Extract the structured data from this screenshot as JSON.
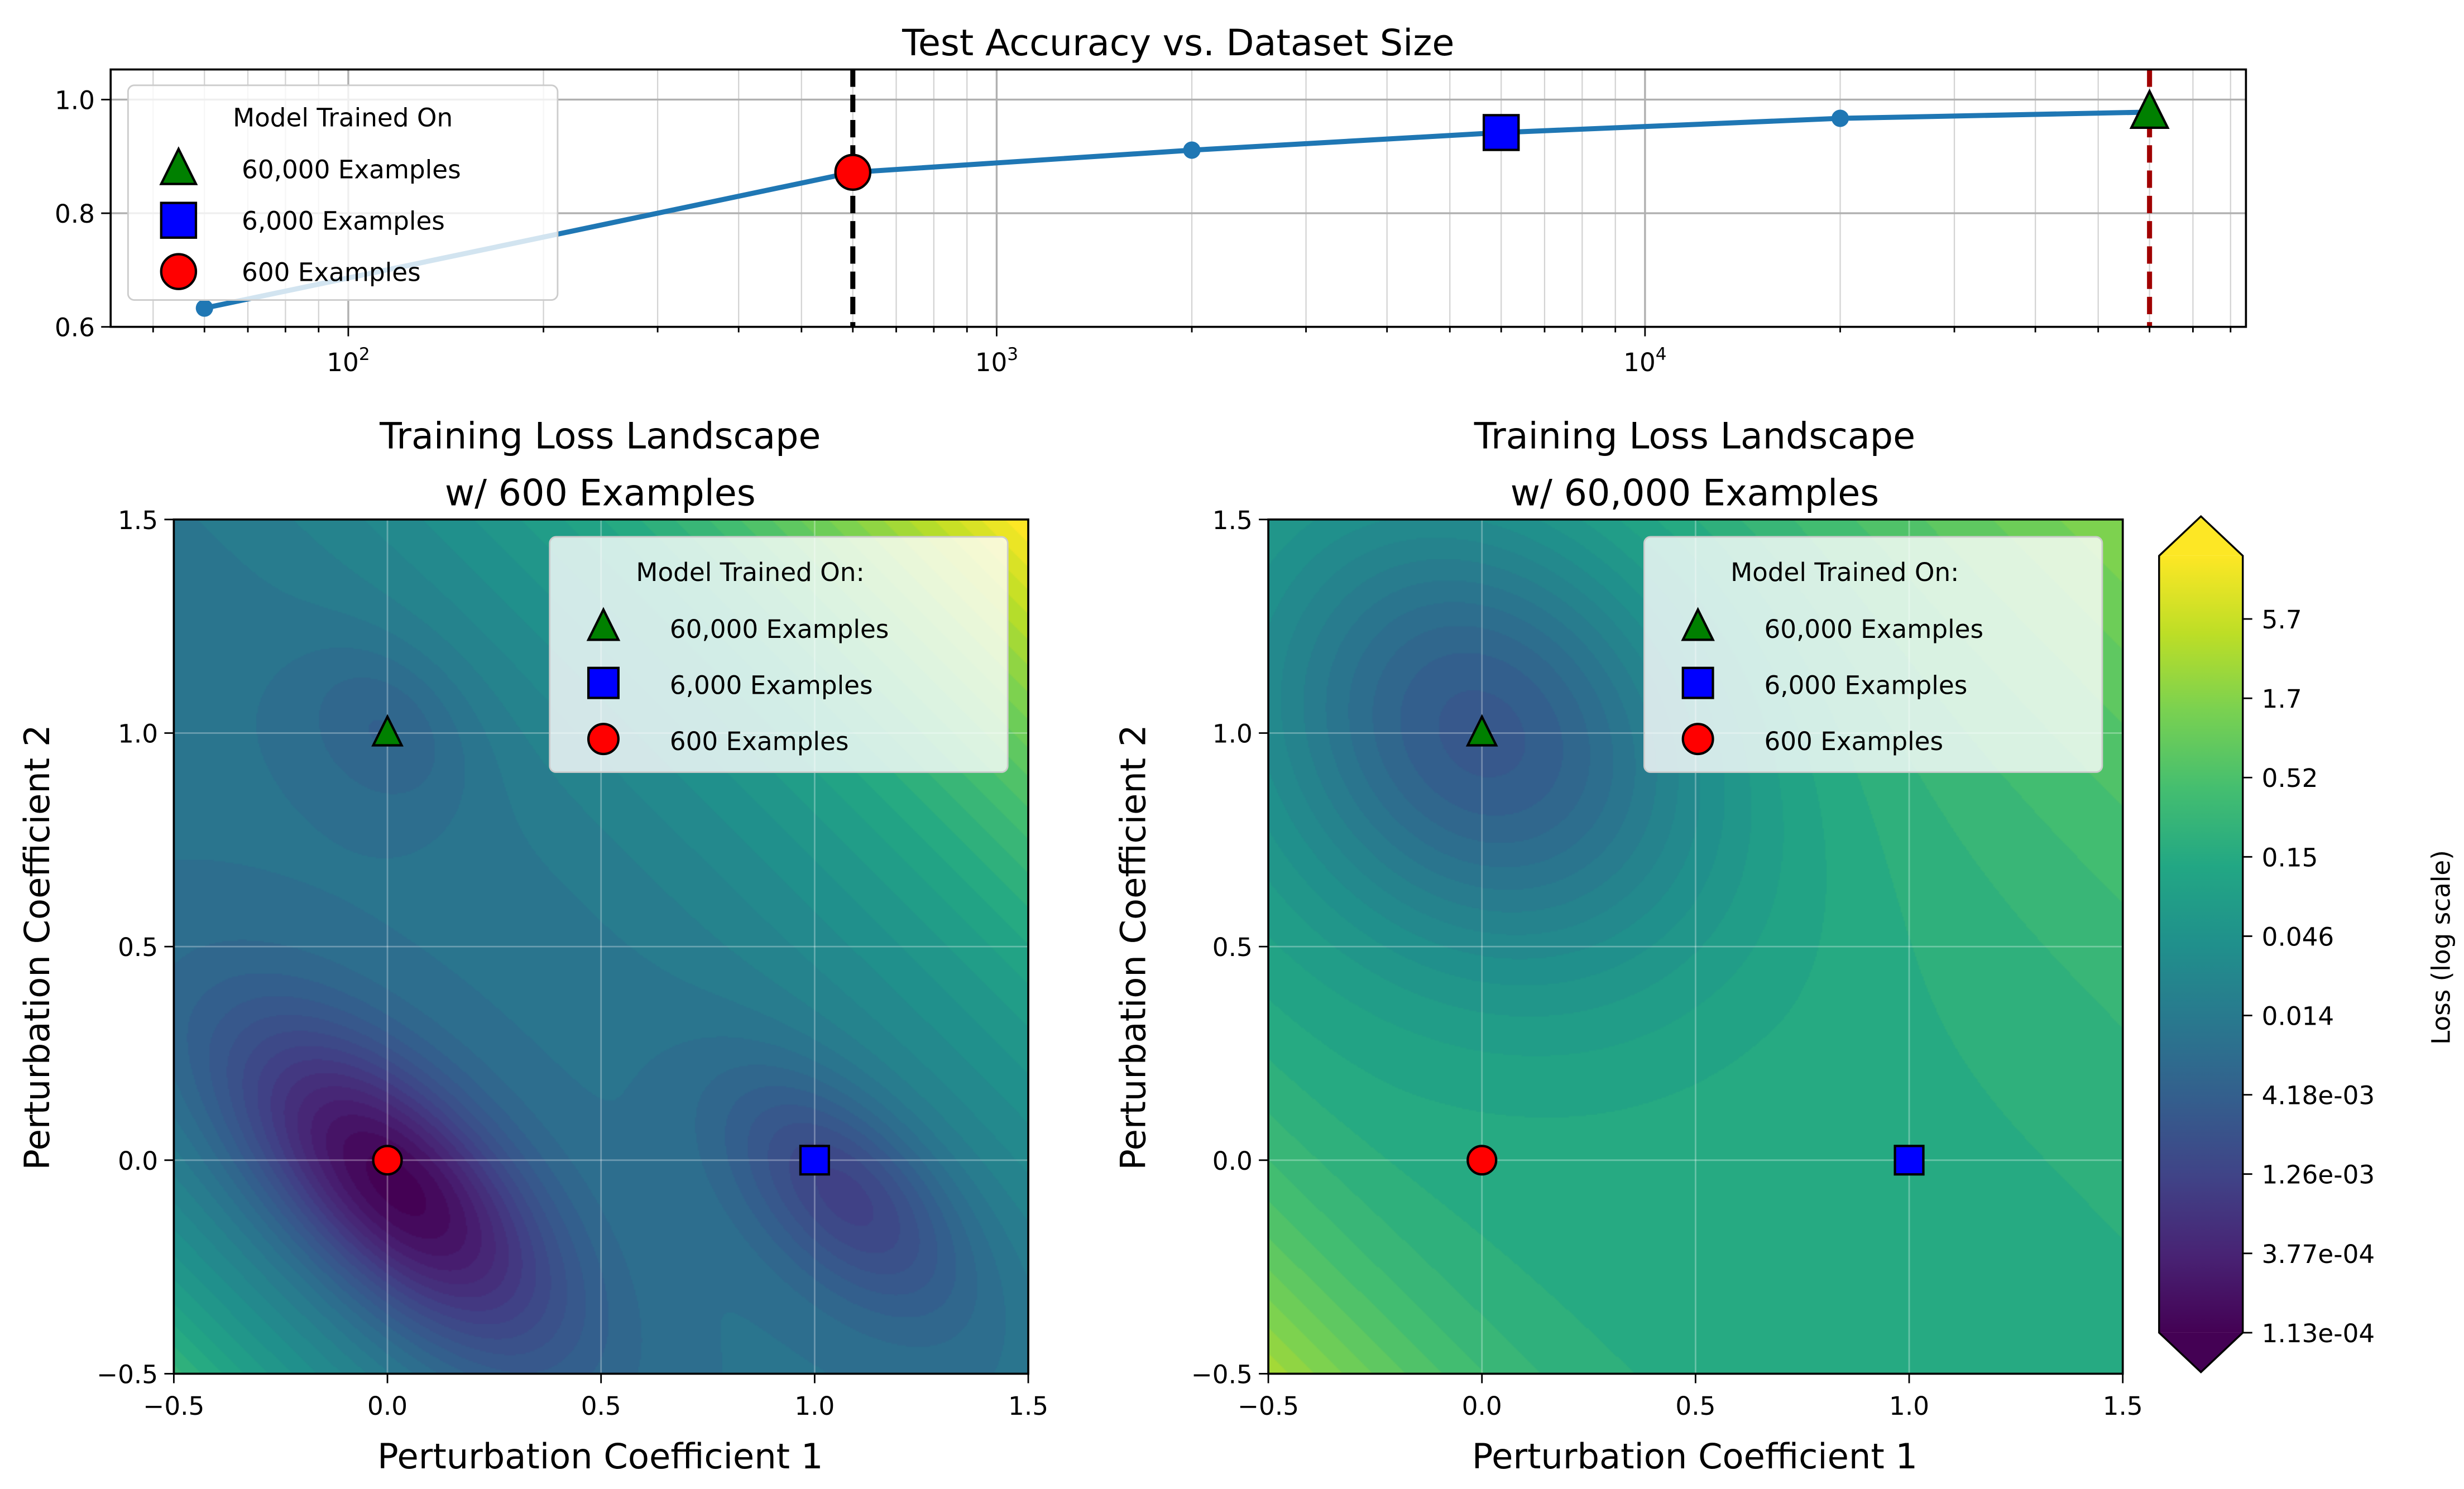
{
  "chart_data": [
    {
      "type": "line",
      "title": "Test Accuracy vs. Dataset Size",
      "xlabel": "",
      "ylabel": "",
      "xscale": "log",
      "xlim": [
        43,
        84500
      ],
      "ylim": [
        0.6,
        1.053
      ],
      "x_ticks": [
        {
          "value": 100,
          "label": "10^2"
        },
        {
          "value": 1000,
          "label": "10^3"
        },
        {
          "value": 10000,
          "label": "10^4"
        }
      ],
      "y_ticks": [
        "0.6",
        "0.8",
        "1.0"
      ],
      "grid": true,
      "series": [
        {
          "x": [
            60,
            600,
            2000,
            6000,
            20000,
            60000
          ],
          "y": [
            0.633,
            0.872,
            0.911,
            0.942,
            0.967,
            0.978
          ],
          "color": "#1f77b4"
        }
      ],
      "vlines": [
        {
          "x": 600,
          "color": "#000000",
          "style": "dashed"
        },
        {
          "x": 60000,
          "color": "#a00000",
          "style": "dashed"
        }
      ],
      "legend": {
        "title": "Model Trained On",
        "placement": "upper-left",
        "entries": [
          {
            "label": "60,000 Examples",
            "marker": "triangle",
            "color": "#008000",
            "x": 60000,
            "y": 0.978
          },
          {
            "label": "6,000 Examples",
            "marker": "square",
            "color": "#0000ff",
            "x": 6000,
            "y": 0.942
          },
          {
            "label": "600 Examples",
            "marker": "circle",
            "color": "#ff0000",
            "x": 600,
            "y": 0.872
          }
        ]
      }
    },
    {
      "type": "heatmap",
      "title_line1": "Training Loss Landscape",
      "title_line2": "w/ 600 Examples",
      "xlabel": "Perturbation Coefficient 1",
      "ylabel": "Perturbation Coefficient 2",
      "xlim": [
        -0.5,
        1.5
      ],
      "ylim": [
        -0.5,
        1.5
      ],
      "x_ticks": [
        "−0.5",
        "0.0",
        "0.5",
        "1.0",
        "1.5"
      ],
      "y_ticks": [
        "−0.5",
        "0.0",
        "0.5",
        "1.0",
        "1.5"
      ],
      "colormap": "viridis",
      "description_minima": "global minimum at (0,0); local minima at (1,0) and (0,1)",
      "legend": {
        "title": "Model Trained On:",
        "placement": "upper-right",
        "entries": [
          {
            "label": "60,000 Examples",
            "marker": "triangle",
            "color": "#008000",
            "x": 0,
            "y": 1
          },
          {
            "label": "6,000 Examples",
            "marker": "square",
            "color": "#0000ff",
            "x": 1,
            "y": 0
          },
          {
            "label": "600 Examples",
            "marker": "circle",
            "color": "#ff0000",
            "x": 0,
            "y": 0
          }
        ]
      }
    },
    {
      "type": "heatmap",
      "title_line1": "Training Loss Landscape",
      "title_line2": "w/ 60,000 Examples",
      "xlabel": "Perturbation Coefficient 1",
      "ylabel": "Perturbation Coefficient 2",
      "xlim": [
        -0.5,
        1.5
      ],
      "ylim": [
        -0.5,
        1.5
      ],
      "x_ticks": [
        "−0.5",
        "0.0",
        "0.5",
        "1.0",
        "1.5"
      ],
      "y_ticks": [
        "−0.5",
        "0.0",
        "0.5",
        "1.0",
        "1.5"
      ],
      "colormap": "viridis",
      "legend": {
        "title": "Model Trained On:",
        "placement": "upper-right",
        "entries": [
          {
            "label": "60,000 Examples",
            "marker": "triangle",
            "color": "#008000",
            "x": 0,
            "y": 1
          },
          {
            "label": "6,000 Examples",
            "marker": "square",
            "color": "#0000ff",
            "x": 1,
            "y": 0
          },
          {
            "label": "600 Examples",
            "marker": "circle",
            "color": "#ff0000",
            "x": 0,
            "y": 0
          }
        ]
      },
      "colorbar": {
        "label": "Loss (log scale)",
        "scale": "log",
        "extend": "both",
        "ticks": [
          "5.7",
          "1.7",
          "0.52",
          "0.15",
          "0.046",
          "0.014",
          "4.18e-03",
          "1.26e-03",
          "3.77e-04",
          "1.13e-04"
        ]
      }
    }
  ]
}
